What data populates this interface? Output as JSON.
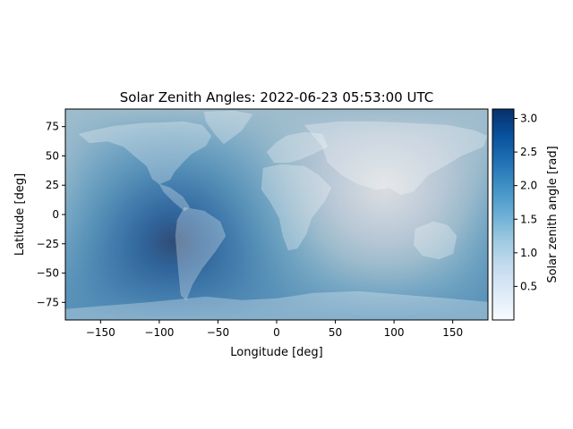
{
  "chart_data": {
    "type": "heatmap",
    "title": "Solar Zenith Angles: 2022-06-23 05:53:00 UTC",
    "xlabel": "Longitude [deg]",
    "ylabel": "Latitude [deg]",
    "xlim": [
      -180,
      180
    ],
    "ylim": [
      -90,
      90
    ],
    "x_ticks": [
      -150,
      -100,
      -50,
      0,
      50,
      100,
      150
    ],
    "y_ticks": [
      -75,
      -50,
      -25,
      0,
      25,
      50,
      75
    ],
    "colorbar": {
      "label": "Solar zenith angle [rad]",
      "range": [
        0,
        3.14
      ],
      "ticks": [
        0.5,
        1.0,
        1.5,
        2.0,
        2.5,
        3.0
      ],
      "colormap": "Blues",
      "colors": [
        "#f7fbff",
        "#deebf7",
        "#c6dbef",
        "#9ecae1",
        "#6baed6",
        "#4292c6",
        "#2171b5",
        "#08519c",
        "#08306b"
      ]
    },
    "subsolar_point": {
      "lon": 91.75,
      "lat": 23.4,
      "zenith": 0.0
    },
    "antisolar_point": {
      "lon": -88.25,
      "lat": -23.4,
      "zenith": 3.14
    },
    "grid": false,
    "overlay": "world-landmass"
  },
  "tick_labels": {
    "x": [
      "−150",
      "−100",
      "−50",
      "0",
      "50",
      "100",
      "150"
    ],
    "y": [
      "−75",
      "−50",
      "−25",
      "0",
      "25",
      "50",
      "75"
    ],
    "cbar": [
      "0.5",
      "1.0",
      "1.5",
      "2.0",
      "2.5",
      "3.0"
    ]
  }
}
